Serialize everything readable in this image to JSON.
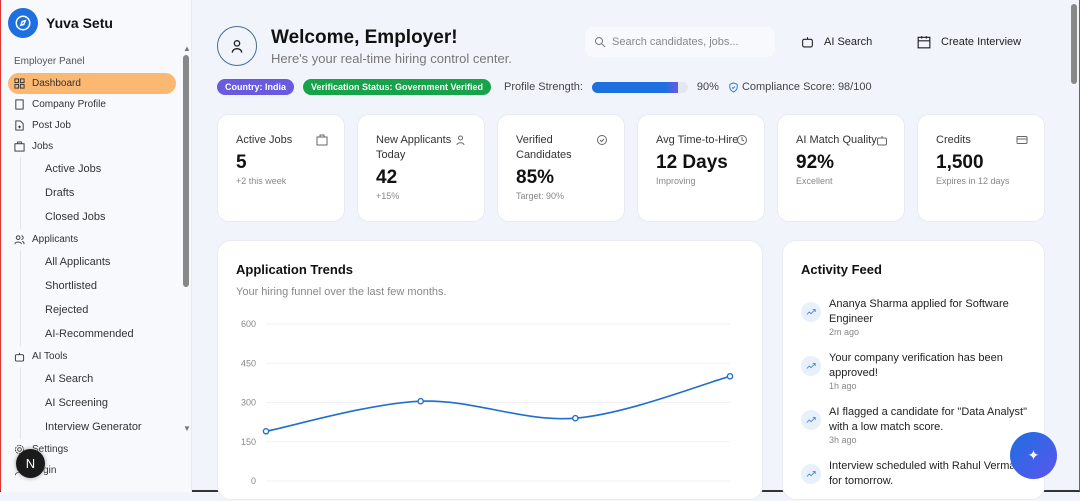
{
  "app": {
    "name": "Yuva Setu"
  },
  "sidebar": {
    "section": "Employer Panel",
    "items": [
      {
        "label": "Dashboard",
        "icon": "grid-icon",
        "active": true
      },
      {
        "label": "Company Profile",
        "icon": "building-icon"
      },
      {
        "label": "Post Job",
        "icon": "file-plus-icon"
      },
      {
        "label": "Jobs",
        "icon": "briefcase-icon",
        "children": [
          "Active Jobs",
          "Drafts",
          "Closed Jobs"
        ]
      },
      {
        "label": "Applicants",
        "icon": "users-icon",
        "children": [
          "All Applicants",
          "Shortlisted",
          "Rejected",
          "AI-Recommended"
        ]
      },
      {
        "label": "AI Tools",
        "icon": "bot-icon",
        "children": [
          "AI Search",
          "AI Screening",
          "Interview Generator"
        ]
      },
      {
        "label": "Settings",
        "icon": "gear-icon"
      },
      {
        "label": "Login",
        "icon": "user-icon"
      }
    ],
    "badge": "N"
  },
  "header": {
    "title": "Welcome, Employer!",
    "subtitle": "Here's your real-time hiring control center.",
    "search_placeholder": "Search candidates, jobs...",
    "ai_search": "AI Search",
    "create_interview": "Create Interview"
  },
  "status": {
    "country": "Country: India",
    "verification": "Verification Status: Government Verified",
    "profile_label": "Profile Strength:",
    "profile_value": "90%",
    "profile_fraction": 0.9,
    "compliance": "Compliance Score: 98/100",
    "colors": {
      "country": "#6a5ae0",
      "verification": "#16a34a"
    }
  },
  "cards": [
    {
      "title": "Active Jobs",
      "value": "5",
      "sub": "+2 this week",
      "icon": "briefcase-icon"
    },
    {
      "title": "New Applicants Today",
      "value": "42",
      "sub": "+15%",
      "icon": "users-icon"
    },
    {
      "title": "Verified Candidates",
      "value": "85%",
      "sub": "Target: 90%",
      "icon": "check-circle-icon"
    },
    {
      "title": "Avg Time-to-Hire",
      "value": "12 Days",
      "sub": "Improving",
      "icon": "clock-icon"
    },
    {
      "title": "AI Match Quality",
      "value": "92%",
      "sub": "Excellent",
      "icon": "bot-icon"
    },
    {
      "title": "Credits",
      "value": "1,500",
      "sub": "Expires in 12 days",
      "icon": "credit-card-icon"
    }
  ],
  "chart": {
    "title": "Application Trends",
    "subtitle": "Your hiring funnel over the last few months."
  },
  "chart_data": {
    "type": "line",
    "title": "Application Trends",
    "ylim": [
      0,
      600
    ],
    "yticks": [
      "600",
      "450",
      "300",
      "150",
      "0"
    ],
    "series": [
      {
        "values": [
          190,
          305,
          240,
          400
        ]
      }
    ],
    "grid": true,
    "color": "#1e6fcf"
  },
  "feed": {
    "title": "Activity Feed",
    "items": [
      {
        "text": "Ananya Sharma applied for Software Engineer",
        "time": "2m ago"
      },
      {
        "text": "Your company verification has been approved!",
        "time": "1h ago"
      },
      {
        "text": "AI flagged a candidate for \"Data Analyst\" with a low match score.",
        "time": "3h ago"
      },
      {
        "text": "Interview scheduled with Rahul Verma for tomorrow.",
        "time": ""
      }
    ]
  }
}
